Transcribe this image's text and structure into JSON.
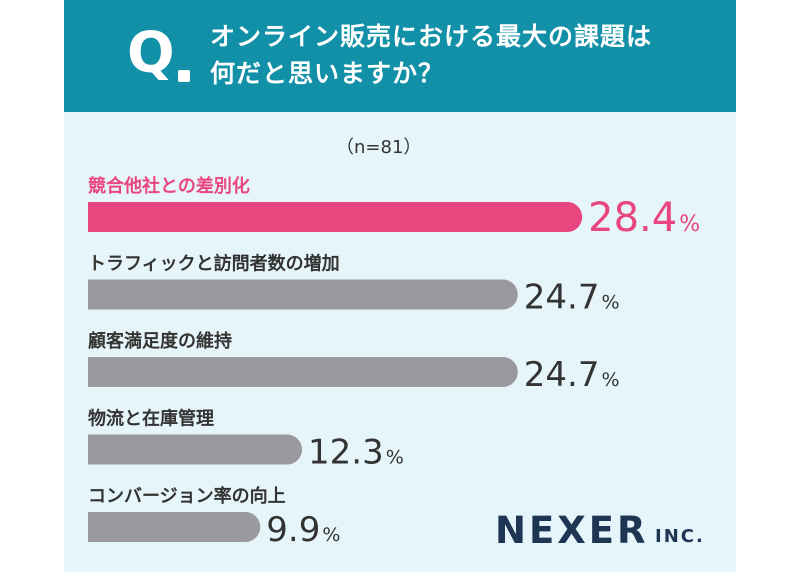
{
  "question": {
    "mark": "Q",
    "line1": "オンライン販売における最大の課題は",
    "line2": "何だと思いますか？"
  },
  "sample_size": "（n=81）",
  "brand": {
    "name": "NEXER",
    "suffix": "INC."
  },
  "colors": {
    "header": "#1190a8",
    "background": "#e6f5f9",
    "highlight": "#e9457e",
    "bar": "#9a9a9e",
    "value_text": "#333333"
  },
  "chart_data": {
    "type": "bar",
    "orientation": "horizontal",
    "categories": [
      "競合他社との差別化",
      "トラフィックと訪問者数の増加",
      "顧客満足度の維持",
      "物流と在庫管理",
      "コンバージョン率の向上"
    ],
    "values": [
      28.4,
      24.7,
      24.7,
      12.3,
      9.9
    ],
    "value_labels": [
      "28.4",
      "24.7",
      "24.7",
      "12.3",
      "9.9"
    ],
    "unit": "%",
    "highlight_index": 0,
    "title": "",
    "xlabel": "",
    "ylabel": ""
  }
}
